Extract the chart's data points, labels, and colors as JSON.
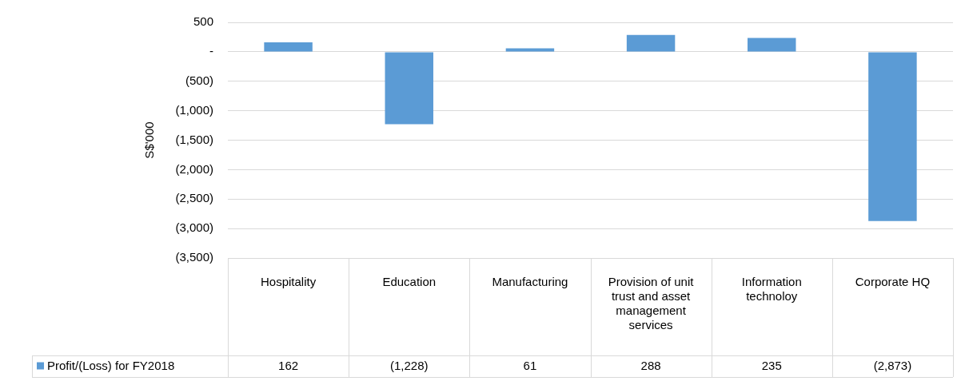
{
  "chart_data": {
    "type": "bar",
    "ylabel": "S$'000",
    "categories": [
      "Hospitality",
      "Education",
      "Manufacturing",
      "Provision of unit trust and asset management services",
      "Information technoloy",
      "Corporate HQ"
    ],
    "series": [
      {
        "name": "Profit/(Loss) for FY2018",
        "color": "#5b9bd5",
        "values": [
          162,
          -1228,
          61,
          288,
          235,
          -2873
        ],
        "value_labels": [
          "162",
          "(1,228)",
          "61",
          "288",
          "235",
          "(2,873)"
        ]
      }
    ],
    "ylim": [
      -3500,
      500
    ],
    "yticks": [
      500,
      {
        "value": 0,
        "label": "-"
      },
      {
        "value": -500,
        "label": "(500)"
      },
      {
        "value": -1000,
        "label": "(1,000)"
      },
      {
        "value": -1500,
        "label": "(1,500)"
      },
      {
        "value": -2000,
        "label": "(2,000)"
      },
      {
        "value": -2500,
        "label": "(2,500)"
      },
      {
        "value": -3000,
        "label": "(3,000)"
      },
      {
        "value": -3500,
        "label": "(3,500)"
      }
    ],
    "grid": "y",
    "legend": "bottom left"
  }
}
